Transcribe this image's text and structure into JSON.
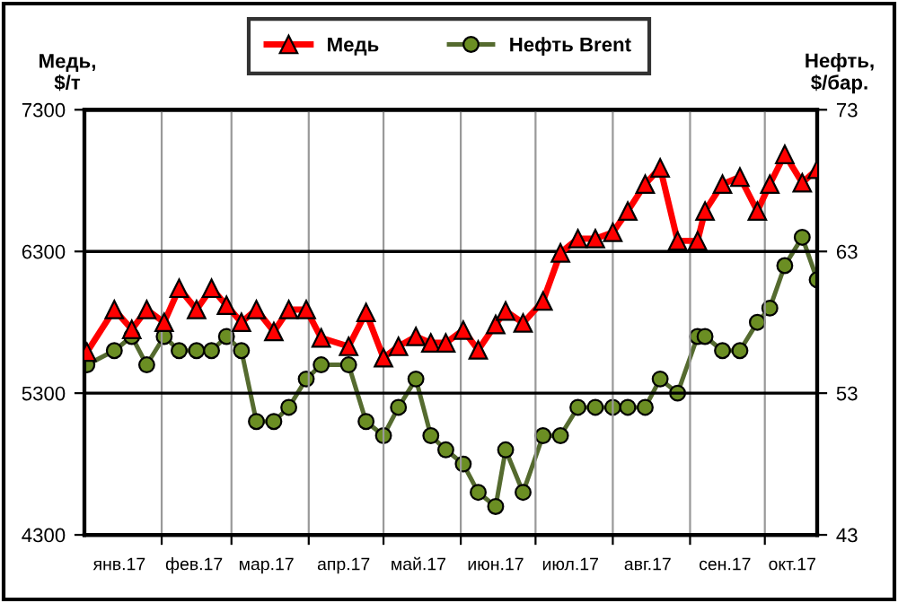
{
  "chart_data": {
    "type": "line",
    "ylabel": "Медь,\n$/т",
    "y2label": "Нефть,\n$/бар.",
    "x": [
      "2017-01-02",
      "2017-01-13",
      "2017-01-20",
      "2017-01-26",
      "2017-02-02",
      "2017-02-08",
      "2017-02-15",
      "2017-02-21",
      "2017-02-27",
      "2017-03-05",
      "2017-03-11",
      "2017-03-18",
      "2017-03-24",
      "2017-03-31",
      "2017-04-06",
      "2017-04-17",
      "2017-04-24",
      "2017-05-01",
      "2017-05-07",
      "2017-05-14",
      "2017-05-20",
      "2017-05-26",
      "2017-06-02",
      "2017-06-08",
      "2017-06-15",
      "2017-06-19",
      "2017-06-26",
      "2017-07-04",
      "2017-07-11",
      "2017-07-18",
      "2017-07-25",
      "2017-08-01",
      "2017-08-07",
      "2017-08-14",
      "2017-08-20",
      "2017-08-27",
      "2017-09-04",
      "2017-09-07",
      "2017-09-14",
      "2017-09-21",
      "2017-09-28",
      "2017-10-03",
      "2017-10-09",
      "2017-10-16",
      "2017-10-22"
    ],
    "series": [
      {
        "name": "Медь",
        "color": "#ff0000",
        "marker": "triangle",
        "values": [
          5590,
          5890,
          5750,
          5890,
          5800,
          6040,
          5890,
          6040,
          5920,
          5800,
          5890,
          5735,
          5890,
          5890,
          5690,
          5630,
          5870,
          5550,
          5630,
          5700,
          5655,
          5655,
          5745,
          5605,
          5785,
          5880,
          5795,
          5950,
          6290,
          6390,
          6390,
          6435,
          6585,
          6775,
          6890,
          6375,
          6375,
          6585,
          6775,
          6825,
          6585,
          6775,
          6985,
          6785,
          6880
        ]
      },
      {
        "name": "Нефть Brent",
        "color": "#556b2f",
        "marker": "circle",
        "axis": "y2",
        "values": [
          55,
          56,
          57,
          55,
          57,
          56,
          56,
          56,
          57,
          56,
          51,
          51,
          52,
          54,
          55,
          55,
          51,
          50,
          52,
          54,
          50,
          49,
          48,
          46,
          45,
          49,
          46,
          50,
          50,
          52,
          52,
          52,
          52,
          52,
          54,
          53,
          57,
          57,
          56,
          56,
          58,
          59,
          62,
          64,
          61
        ]
      }
    ],
    "xlim": [
      "2017-01-01",
      "2017-10-22"
    ],
    "xticks": [
      {
        "value": "2017-02-01",
        "label": null
      },
      {
        "value": "2017-03-01",
        "label": null
      },
      {
        "value": "2017-04-01",
        "label": null
      },
      {
        "value": "2017-05-01",
        "label": null
      },
      {
        "value": "2017-06-01",
        "label": null
      },
      {
        "value": "2017-07-01",
        "label": null
      },
      {
        "value": "2017-08-01",
        "label": null
      },
      {
        "value": "2017-09-01",
        "label": null
      },
      {
        "value": "2017-10-01",
        "label": null
      },
      {
        "value": "2017-01-15",
        "label": "янв.17"
      },
      {
        "value": "2017-02-14",
        "label": "фев.17"
      },
      {
        "value": "2017-03-15",
        "label": "мар.17"
      },
      {
        "value": "2017-04-15",
        "label": "апр.17"
      },
      {
        "value": "2017-05-15",
        "label": "май.17"
      },
      {
        "value": "2017-06-15",
        "label": "июн.17"
      },
      {
        "value": "2017-07-15",
        "label": "июл.17"
      },
      {
        "value": "2017-08-15",
        "label": "авг.17"
      },
      {
        "value": "2017-09-15",
        "label": "сен.17"
      },
      {
        "value": "2017-10-12",
        "label": "окт.17"
      }
    ],
    "ylim": [
      4300,
      7300
    ],
    "yticks": [
      4300,
      5300,
      6300,
      7300
    ],
    "y2lim": [
      43,
      73
    ],
    "y2ticks": [
      43,
      53,
      63,
      73
    ],
    "grid": true,
    "legend": "top"
  }
}
